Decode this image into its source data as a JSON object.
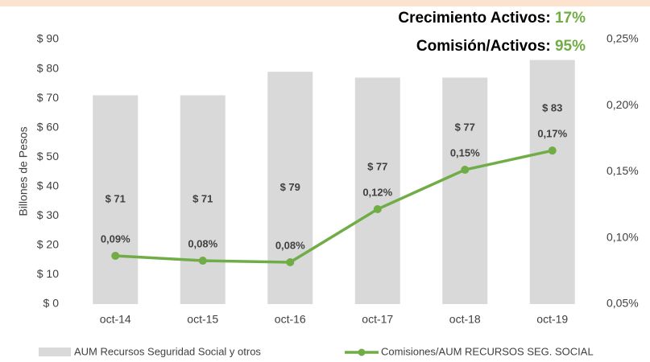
{
  "chart_data": {
    "type": "bar-line",
    "annotations": [
      {
        "text": "Crecimiento Activos:",
        "value": "17%"
      },
      {
        "text": "Comisión/Activos:",
        "value": "95%"
      }
    ],
    "ylabel": "Billones de Pesos",
    "categories": [
      "oct-14",
      "oct-15",
      "oct-16",
      "oct-17",
      "oct-18",
      "oct-19"
    ],
    "series": [
      {
        "name": "AUM Recursos Seguridad Social y otros",
        "color": "#d9d9d9",
        "type": "bar",
        "values": [
          71,
          71,
          79,
          77,
          77,
          83
        ],
        "value_labels": [
          "$ 71",
          "$ 71",
          "$ 79",
          "$ 77",
          "$ 77",
          "$ 83"
        ]
      },
      {
        "name": "Comisiones/AUM RECURSOS SEG. SOCIAL",
        "color": "#70ad47",
        "type": "line",
        "axis": "y2",
        "values": [
          0.0865,
          0.0828,
          0.0816,
          0.1217,
          0.1515,
          0.166
        ],
        "value_labels": [
          "0,09%",
          "0,08%",
          "0,08%",
          "0,12%",
          "0,15%",
          "0,17%"
        ]
      }
    ],
    "ylim": [
      0,
      90
    ],
    "yticks": [
      {
        "value": 0,
        "label": "$ 0"
      },
      {
        "value": 10,
        "label": "$ 10"
      },
      {
        "value": 20,
        "label": "$ 20"
      },
      {
        "value": 30,
        "label": "$ 30"
      },
      {
        "value": 40,
        "label": "$ 40"
      },
      {
        "value": 50,
        "label": "$ 50"
      },
      {
        "value": 60,
        "label": "$ 60"
      },
      {
        "value": 70,
        "label": "$ 70"
      },
      {
        "value": 80,
        "label": "$ 80"
      },
      {
        "value": 90,
        "label": "$ 90"
      }
    ],
    "y2lim": [
      0.05,
      0.25
    ],
    "y2ticks": [
      {
        "value": 0.05,
        "label": "0,05%"
      },
      {
        "value": 0.1,
        "label": "0,10%"
      },
      {
        "value": 0.15,
        "label": "0,15%"
      },
      {
        "value": 0.2,
        "label": "0,20%"
      },
      {
        "value": 0.25,
        "label": "0,25%"
      }
    ],
    "legend": "bottom"
  }
}
